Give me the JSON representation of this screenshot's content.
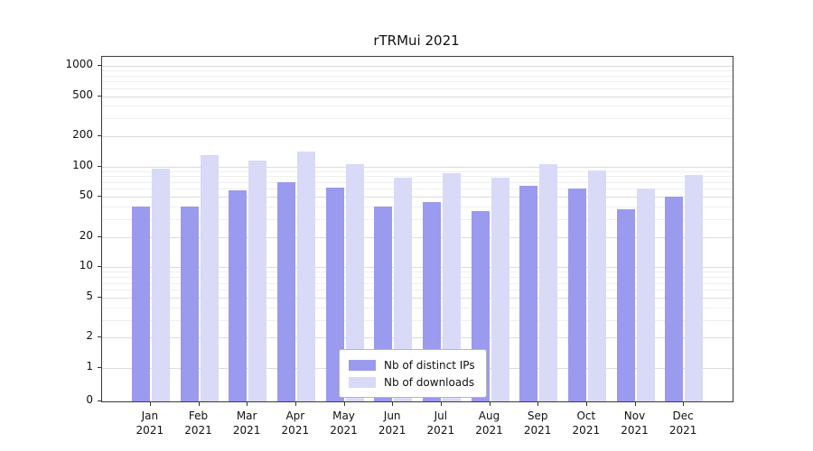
{
  "chart_data": {
    "type": "bar",
    "title": "rTRMui 2021",
    "categories": [
      "Jan 2021",
      "Feb 2021",
      "Mar 2021",
      "Apr 2021",
      "May 2021",
      "Jun 2021",
      "Jul 2021",
      "Aug 2021",
      "Sep 2021",
      "Oct 2021",
      "Nov 2021",
      "Dec 2021"
    ],
    "series": [
      {
        "name": "Nb of distinct IPs",
        "color": "#9a9aee",
        "values": [
          40,
          40,
          58,
          70,
          62,
          40,
          44,
          36,
          64,
          60,
          38,
          50
        ]
      },
      {
        "name": "Nb of downloads",
        "color": "#d9d9f8",
        "values": [
          95,
          130,
          115,
          140,
          105,
          78,
          86,
          78,
          105,
          92,
          60,
          83
        ]
      }
    ],
    "yticks": [
      0,
      1,
      2,
      5,
      10,
      20,
      50,
      100,
      200,
      500,
      1000
    ],
    "ylim": [
      0,
      1000
    ],
    "scale": "symlog",
    "grid": true,
    "legend_position": "bottom-center",
    "xlabel": "",
    "ylabel": ""
  }
}
